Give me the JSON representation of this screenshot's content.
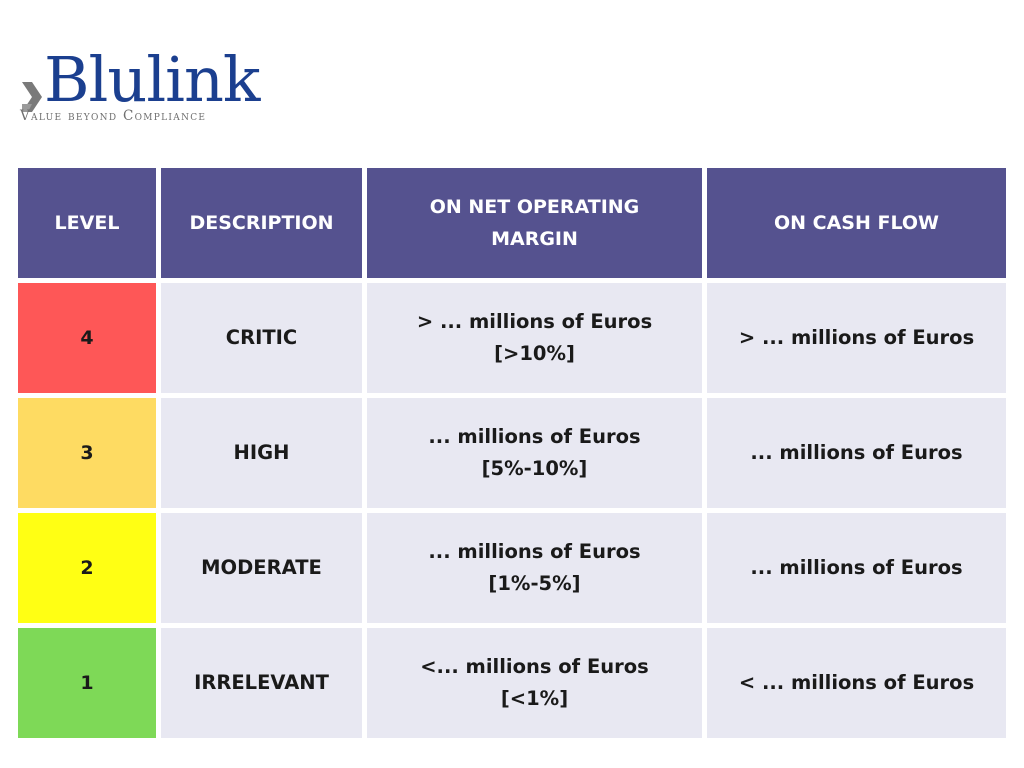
{
  "logo": {
    "wordmark": "Blulink",
    "tagline": "Value beyond Compliance"
  },
  "table": {
    "headers": {
      "level": "LEVEL",
      "description": "DESCRIPTION",
      "margin": "ON NET OPERATING MARGIN",
      "cash": "ON CASH FLOW"
    },
    "rows": [
      {
        "level": "4",
        "description": "CRITIC",
        "margin_line1": "> ... millions of Euros",
        "margin_line2": "[>10%]",
        "cash": "> ... millions of Euros",
        "color": "#fe5757"
      },
      {
        "level": "3",
        "description": "HIGH",
        "margin_line1": "... millions of Euros",
        "margin_line2": "[5%-10%]",
        "cash": "... millions of Euros",
        "color": "#fedb62"
      },
      {
        "level": "2",
        "description": "MODERATE",
        "margin_line1": "... millions of Euros",
        "margin_line2": "[1%-5%]",
        "cash": "... millions of Euros",
        "color": "#ffff14"
      },
      {
        "level": "1",
        "description": "IRRELEVANT",
        "margin_line1": "<... millions of Euros",
        "margin_line2": "[<1%]",
        "cash": "< ... millions of Euros",
        "color": "#7ed957"
      }
    ]
  },
  "colors": {
    "header_bg": "#55528f",
    "cell_bg": "#e8e8f2",
    "brand_blue": "#1b3f8f"
  }
}
